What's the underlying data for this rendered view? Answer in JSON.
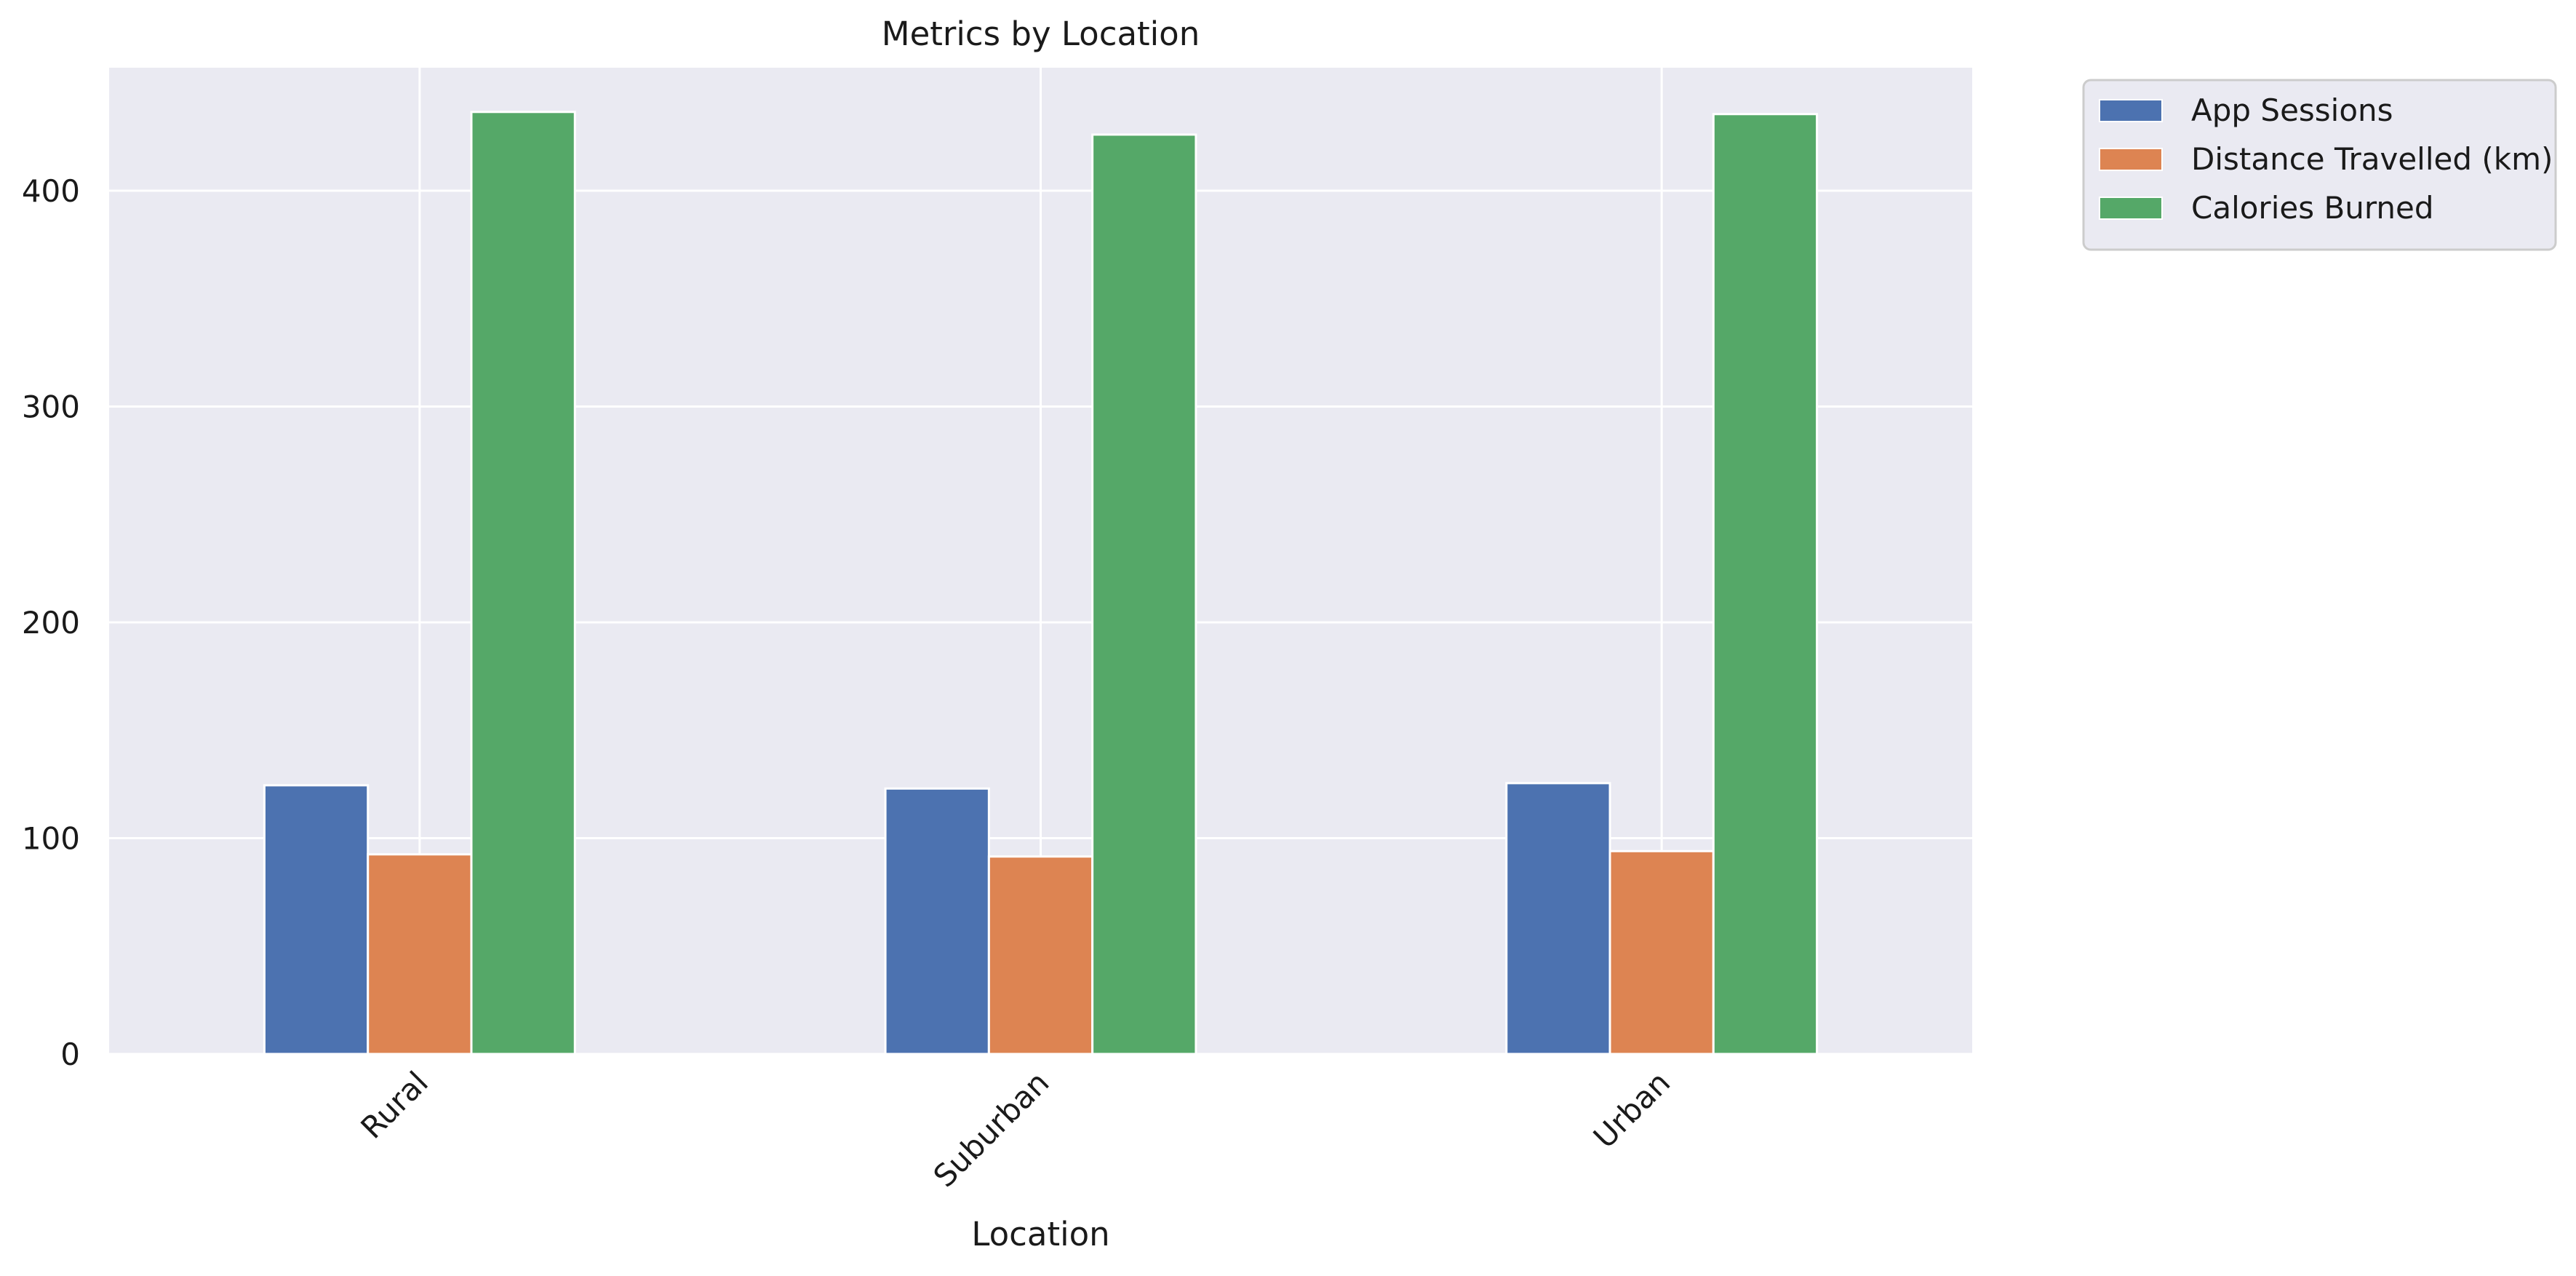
{
  "chart_data": {
    "type": "bar",
    "title": "Metrics by Location",
    "xlabel": "Location",
    "ylabel": "",
    "categories": [
      "Rural",
      "Suburban",
      "Urban"
    ],
    "series": [
      {
        "name": "App Sessions",
        "values": [
          124.5,
          123.0,
          125.5
        ],
        "color": "#4c72b0"
      },
      {
        "name": "Distance Travelled (km)",
        "values": [
          92.5,
          91.5,
          94.0
        ],
        "color": "#dd8452"
      },
      {
        "name": "Calories Burned",
        "values": [
          436.5,
          426.0,
          435.5
        ],
        "color": "#55a868"
      }
    ],
    "ylim": [
      0,
      457
    ],
    "yticks": [
      0,
      100,
      200,
      300,
      400
    ],
    "grid": true,
    "legend_position": "outside-top-right",
    "colors": {
      "plot_background": "#eaeaf2",
      "grid": "#ffffff",
      "text": "#1a1a1a"
    }
  }
}
